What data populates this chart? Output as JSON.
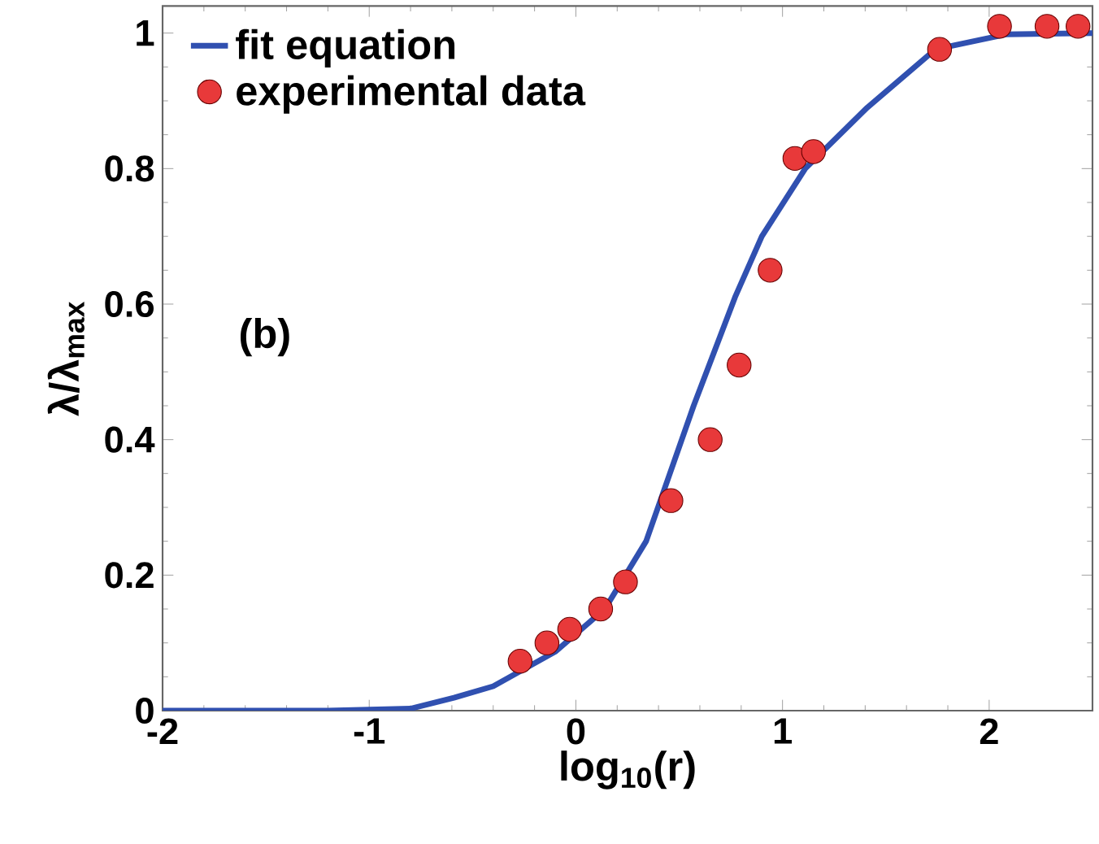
{
  "chart_data": {
    "type": "scatter",
    "xlabel": "log$_{10}$(r)",
    "ylabel": "λ/λ$_{max}$",
    "xlim": [
      -2,
      2.5
    ],
    "ylim": [
      0,
      1.04
    ],
    "xticks": [
      -2,
      -1,
      0,
      1,
      2
    ],
    "yticks": [
      0,
      0.2,
      0.4,
      0.6,
      0.8,
      1
    ],
    "legend": "top left",
    "grid": false,
    "annotations": [
      "(b)"
    ],
    "series": [
      {
        "name": "fit equation",
        "type": "line",
        "color": "#3050b0",
        "marker": "none",
        "line_style": "solid",
        "x": [
          -2,
          -1.2,
          -0.8,
          -0.59,
          -0.4,
          -0.1,
          0.14,
          0.34,
          0.57,
          0.77,
          0.9,
          1.11,
          1.41,
          1.74,
          2.08,
          2.5
        ],
        "values": [
          0,
          0,
          0.003,
          0.019,
          0.036,
          0.087,
          0.15,
          0.25,
          0.45,
          0.61,
          0.7,
          0.8,
          0.89,
          0.976,
          0.998,
          1
        ]
      },
      {
        "name": "experimental data",
        "color": "#e8393a",
        "marker": "circle",
        "x": [
          -0.27,
          -0.14,
          -0.03,
          0.12,
          0.24,
          0.46,
          0.65,
          0.79,
          0.94,
          1.06,
          1.15,
          1.76,
          2.05,
          2.28,
          2.43
        ],
        "values": [
          0.073,
          0.1,
          0.12,
          0.15,
          0.19,
          0.31,
          0.4,
          0.51,
          0.65,
          0.815,
          0.825,
          0.976,
          1.01,
          1.01,
          1.01
        ]
      }
    ]
  }
}
